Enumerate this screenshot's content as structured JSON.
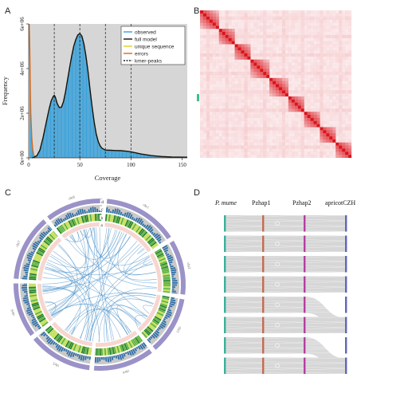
{
  "panels": {
    "a": "A",
    "b": "B",
    "c": "C",
    "d": "D"
  },
  "chart_data": {
    "type": "line",
    "title": "",
    "xlabel": "Coverage",
    "ylabel": "Frequency",
    "xlim": [
      0,
      155
    ],
    "ylim": [
      0,
      6000000
    ],
    "x_ticks": [
      "0",
      "50",
      "100",
      "150"
    ],
    "y_ticks": [
      "0e+00",
      "2e+06",
      "4e+06",
      "6e+06"
    ],
    "kmer_peaks": [
      25,
      50,
      75,
      100
    ],
    "legend": {
      "placement": "top-right",
      "entries": [
        {
          "label": "observed",
          "color": "#3aa0d8"
        },
        {
          "label": "full model",
          "color": "#111111"
        },
        {
          "label": "unique sequence",
          "color": "#e0d020"
        },
        {
          "label": "errors",
          "color": "#d2691e"
        },
        {
          "label": "kmer-peaks",
          "color": "#222222"
        }
      ]
    },
    "series": [
      {
        "name": "full model",
        "x": [
          3,
          5,
          8,
          11,
          14,
          17,
          20,
          22,
          24,
          25,
          26,
          28,
          30,
          32,
          34,
          36,
          38,
          40,
          42,
          44,
          46,
          48,
          50,
          52,
          54,
          56,
          58,
          60,
          62,
          64,
          66,
          68,
          70,
          72,
          75,
          80,
          85,
          90,
          95,
          100,
          105,
          110,
          120,
          130,
          140,
          155
        ],
        "y": [
          0,
          20000,
          100000,
          350000,
          900000,
          1550000,
          2200000,
          2550000,
          2750000,
          2800000,
          2720000,
          2420000,
          2250000,
          2270000,
          2520000,
          2950000,
          3500000,
          4050000,
          4550000,
          5000000,
          5300000,
          5500000,
          5570000,
          5450000,
          5100000,
          4550000,
          3850000,
          3050000,
          2280000,
          1600000,
          1080000,
          730000,
          520000,
          420000,
          350000,
          340000,
          330000,
          320000,
          300000,
          270000,
          220000,
          170000,
          100000,
          60000,
          40000,
          30000
        ]
      },
      {
        "name": "errors",
        "x": [
          0.5,
          1,
          1.5,
          2,
          3,
          4,
          5,
          6,
          8
        ],
        "y": [
          6000000,
          5000000,
          3500000,
          2000000,
          900000,
          350000,
          120000,
          40000,
          0
        ]
      }
    ]
  },
  "heatmap": {
    "n": 22,
    "colors": {
      "high": "#d9141b",
      "mid": "#f0a4a8",
      "low": "#fbe8ea",
      "bg": "#fdf6f7"
    }
  },
  "circos": {
    "track_labels": [
      "d",
      "c",
      "b",
      "a"
    ],
    "chromosome_labels": [
      "chr1",
      "chr2",
      "chr3",
      "chr4",
      "chr5",
      "chr6",
      "chr7",
      "chr8"
    ],
    "colors": {
      "ideogram": "#9b92c8",
      "density": "#2e9b3c",
      "gc": "#5aa0c8",
      "links": "#4a90c8",
      "inner": "#f6d6cf"
    }
  },
  "synteny": {
    "headers": [
      {
        "text": "P. mume",
        "italic": true
      },
      {
        "text": "Pzhap1",
        "italic": false
      },
      {
        "text": "Pzhap2",
        "italic": false
      },
      {
        "text": "apricotCZH",
        "italic": false
      }
    ],
    "bar_colors": [
      "#3bb09b",
      "#c56b50",
      "#b33fa0",
      "#5e68b8"
    ]
  }
}
